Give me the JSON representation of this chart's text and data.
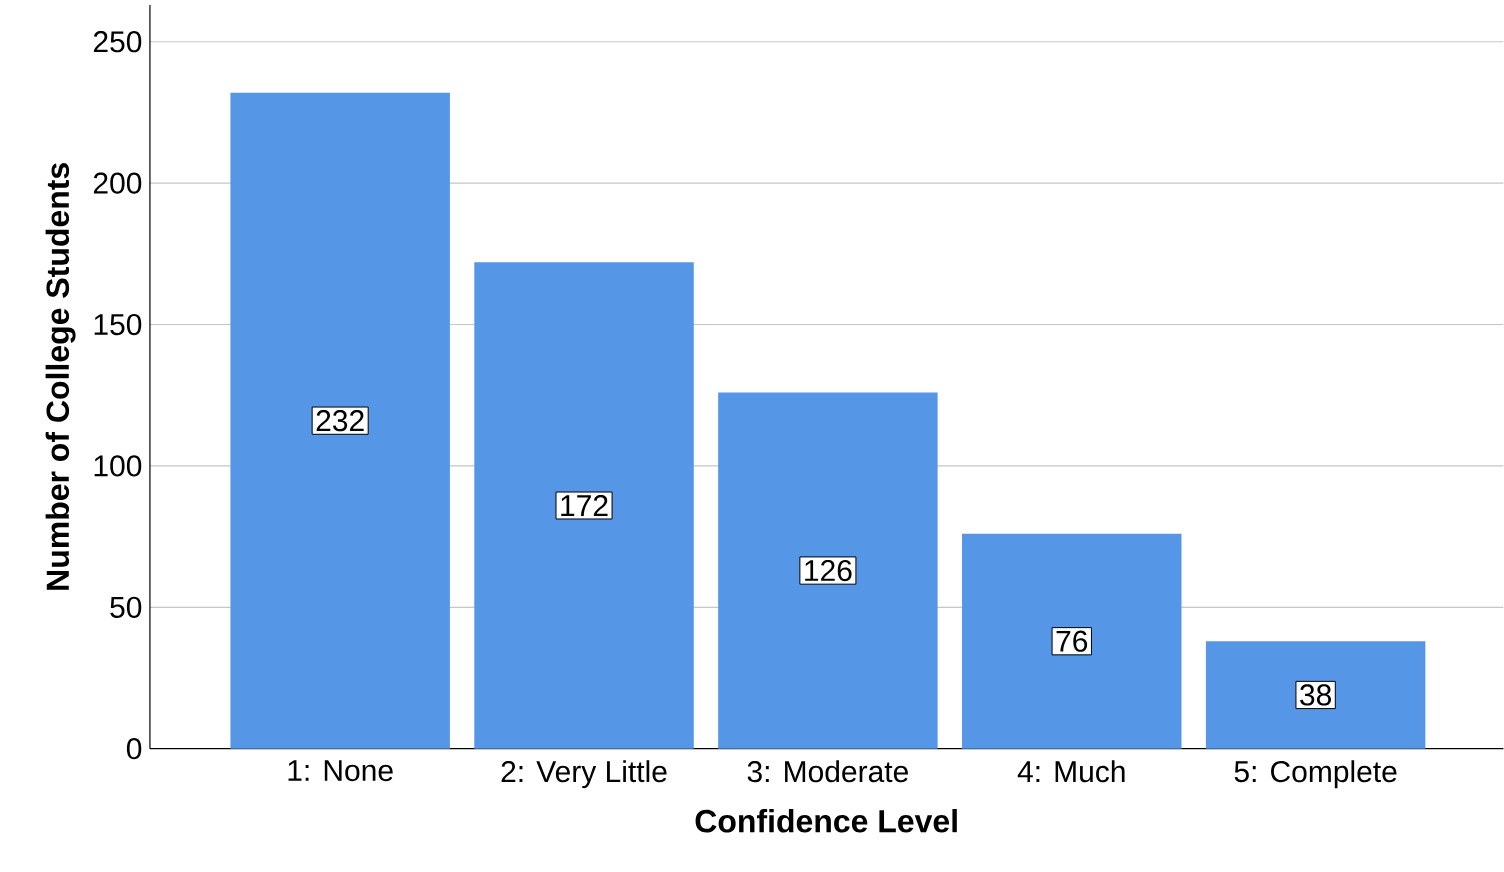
{
  "chart_data": {
    "type": "bar",
    "xlabel": "Confidence Level",
    "ylabel": "Number of College Students",
    "categories": [
      "1: None",
      "2: Very Little",
      "3: Moderate",
      "4: Much",
      "5: Complete"
    ],
    "values": [
      232,
      172,
      126,
      76,
      38
    ],
    "color": "#5596e6",
    "ylim": [
      0,
      263
    ],
    "yticks": [
      0,
      50,
      100,
      150,
      200,
      250
    ],
    "grid": "y",
    "data_labels": true
  }
}
